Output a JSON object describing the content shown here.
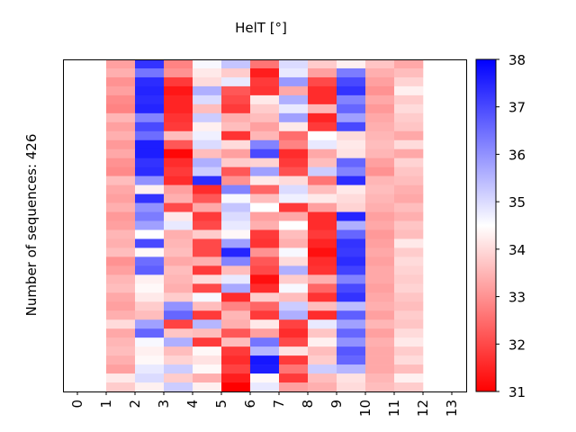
{
  "chart_data": {
    "type": "heatmap",
    "title": "HelT [°]",
    "ylabel": "Number of sequences: 426",
    "xlabel": "",
    "x_ticks": [
      "0",
      "1",
      "2",
      "3",
      "4",
      "5",
      "6",
      "7",
      "8",
      "9",
      "10",
      "11",
      "12",
      "13"
    ],
    "xlim": [
      -0.5,
      13.5
    ],
    "column_edges": [
      1,
      2,
      3,
      4,
      5,
      6,
      7,
      8,
      9,
      10,
      11,
      12
    ],
    "n_sequences": 426,
    "colormap": "bwr_r",
    "colorbar": {
      "min": 31,
      "max": 38,
      "ticks": [
        "31",
        "32",
        "33",
        "34",
        "35",
        "36",
        "37",
        "38"
      ]
    },
    "colors": {
      "low": "#ff0000",
      "mid": "#ffffff",
      "high": "#0000ff"
    },
    "rows_note_binned": true,
    "values": [
      [
        33.2,
        37.3,
        32.8,
        34.6,
        35.3,
        32.6,
        35.0,
        33.8,
        34.3,
        33.7,
        33.3
      ],
      [
        33.4,
        36.4,
        33.0,
        34.2,
        33.8,
        31.4,
        34.8,
        33.2,
        36.3,
        33.4,
        33.6
      ],
      [
        33.0,
        37.4,
        31.8,
        34.0,
        34.8,
        31.8,
        35.9,
        32.0,
        37.0,
        33.2,
        33.9
      ],
      [
        33.2,
        37.5,
        31.3,
        35.6,
        32.2,
        31.7,
        33.3,
        31.6,
        37.3,
        33.0,
        34.3
      ],
      [
        32.9,
        37.4,
        31.5,
        35.0,
        32.0,
        34.2,
        35.6,
        31.6,
        36.2,
        33.3,
        33.8
      ],
      [
        32.8,
        37.5,
        31.5,
        33.6,
        31.8,
        33.8,
        34.8,
        33.5,
        36.6,
        33.1,
        34.0
      ],
      [
        33.5,
        36.2,
        31.7,
        35.2,
        33.4,
        33.6,
        35.8,
        31.5,
        35.8,
        33.3,
        33.8
      ],
      [
        33.2,
        37.0,
        31.8,
        34.3,
        33.6,
        33.2,
        34.2,
        31.8,
        37.0,
        33.4,
        33.7
      ],
      [
        33.4,
        36.5,
        33.6,
        34.7,
        31.7,
        33.5,
        32.5,
        34.5,
        34.0,
        33.5,
        33.3
      ],
      [
        33.1,
        37.6,
        32.2,
        35.0,
        34.0,
        36.2,
        32.8,
        34.8,
        34.2,
        33.6,
        34.0
      ],
      [
        33.3,
        37.6,
        31.1,
        33.6,
        33.2,
        37.0,
        31.6,
        33.3,
        34.1,
        33.5,
        33.3
      ],
      [
        33.0,
        37.3,
        31.6,
        35.6,
        33.8,
        33.9,
        31.8,
        33.6,
        36.6,
        33.2,
        33.9
      ],
      [
        32.9,
        37.4,
        31.8,
        35.2,
        32.2,
        35.8,
        32.1,
        35.2,
        36.2,
        33.0,
        33.7
      ],
      [
        33.6,
        36.0,
        31.6,
        37.4,
        33.0,
        34.2,
        34.0,
        32.6,
        37.4,
        33.5,
        33.6
      ],
      [
        33.3,
        34.3,
        33.2,
        31.6,
        36.2,
        32.4,
        35.0,
        33.6,
        34.2,
        33.6,
        33.4
      ],
      [
        33.2,
        37.3,
        33.4,
        32.2,
        34.6,
        33.6,
        34.7,
        34.2,
        34.0,
        33.5,
        33.3
      ],
      [
        33.4,
        36.0,
        32.0,
        33.3,
        35.3,
        34.5,
        31.8,
        33.2,
        33.9,
        33.4,
        33.6
      ],
      [
        33.1,
        36.3,
        34.2,
        31.8,
        35.0,
        33.2,
        33.3,
        31.6,
        37.5,
        33.2,
        33.4
      ],
      [
        33.2,
        35.8,
        34.8,
        32.0,
        34.8,
        33.4,
        34.5,
        31.6,
        35.6,
        33.3,
        33.7
      ],
      [
        33.5,
        34.5,
        33.4,
        33.8,
        34.4,
        31.8,
        33.6,
        31.8,
        36.6,
        33.1,
        33.6
      ],
      [
        33.4,
        37.0,
        33.5,
        32.0,
        35.8,
        31.7,
        33.4,
        31.5,
        37.3,
        33.2,
        34.2
      ],
      [
        33.6,
        34.4,
        33.6,
        32.0,
        37.5,
        33.0,
        34.6,
        31.2,
        37.2,
        33.3,
        33.8
      ],
      [
        33.0,
        36.5,
        33.3,
        33.4,
        36.2,
        32.2,
        34.0,
        31.6,
        37.4,
        33.2,
        34.0
      ],
      [
        33.2,
        36.7,
        33.6,
        31.8,
        33.6,
        32.0,
        35.6,
        31.7,
        37.1,
        33.3,
        33.9
      ],
      [
        33.5,
        34.3,
        33.5,
        34.0,
        34.8,
        31.2,
        33.8,
        33.4,
        36.2,
        33.3,
        33.8
      ],
      [
        33.6,
        34.4,
        33.4,
        32.0,
        35.7,
        31.6,
        34.6,
        32.4,
        37.0,
        33.2,
        33.9
      ],
      [
        33.3,
        34.2,
        33.8,
        34.6,
        31.6,
        33.8,
        33.6,
        31.7,
        37.3,
        33.3,
        33.7
      ],
      [
        33.2,
        33.8,
        36.0,
        33.6,
        32.8,
        32.4,
        35.2,
        33.6,
        35.4,
        33.4,
        33.6
      ],
      [
        33.4,
        33.6,
        36.6,
        31.8,
        33.5,
        31.8,
        35.6,
        31.6,
        36.7,
        33.2,
        33.8
      ],
      [
        34.0,
        35.8,
        31.9,
        35.5,
        33.4,
        34.2,
        31.9,
        34.8,
        35.8,
        33.5,
        33.7
      ],
      [
        33.3,
        36.6,
        33.7,
        33.6,
        32.2,
        33.2,
        31.6,
        33.7,
        36.6,
        33.2,
        34.0
      ],
      [
        33.5,
        34.6,
        35.6,
        31.8,
        33.6,
        36.4,
        32.0,
        34.3,
        36.0,
        33.4,
        34.2
      ],
      [
        33.6,
        34.3,
        33.6,
        34.4,
        31.8,
        35.5,
        34.1,
        33.6,
        36.8,
        33.3,
        33.8
      ],
      [
        33.4,
        34.4,
        33.9,
        34.1,
        31.6,
        37.7,
        31.8,
        33.8,
        36.6,
        33.3,
        34.0
      ],
      [
        33.2,
        34.8,
        35.2,
        34.4,
        31.9,
        37.6,
        32.6,
        35.2,
        35.5,
        33.3,
        33.6
      ],
      [
        34.2,
        35.0,
        33.8,
        33.4,
        31.4,
        34.4,
        31.8,
        33.6,
        34.1,
        33.5,
        34.3
      ],
      [
        33.8,
        34.3,
        35.2,
        34.3,
        31.0,
        34.8,
        33.2,
        33.4,
        34.0,
        33.6,
        33.8
      ]
    ]
  }
}
